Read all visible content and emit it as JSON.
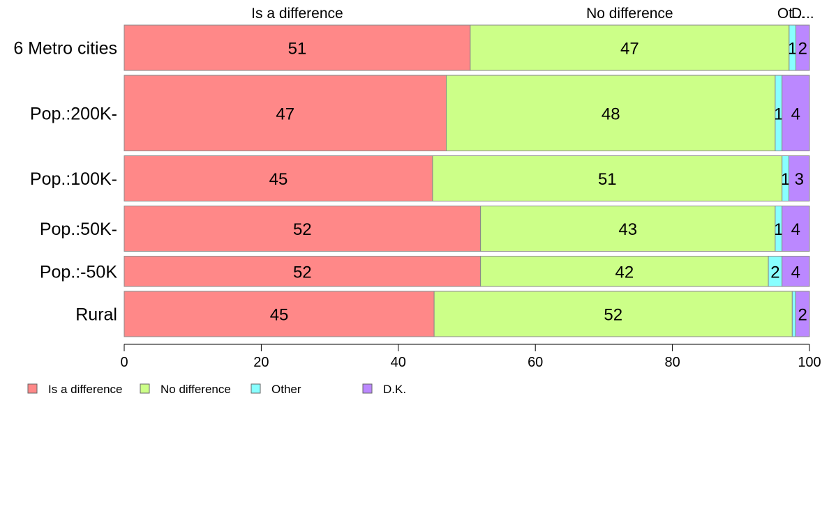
{
  "chart_data": {
    "type": "bar",
    "orientation": "horizontal",
    "stacked": true,
    "categories": [
      "6 Metro cities",
      "Pop.:200K-",
      "Pop.:100K-",
      "Pop.:50K-",
      "Pop.:-50K",
      "Rural"
    ],
    "row_weights": [
      3,
      5,
      3,
      3,
      2,
      3
    ],
    "series": [
      {
        "name": "Is a difference",
        "color": "#FF8888",
        "values": [
          51,
          47,
          45,
          52,
          52,
          45
        ]
      },
      {
        "name": "No difference",
        "color": "#CCFF88",
        "values": [
          47,
          48,
          51,
          43,
          42,
          52
        ]
      },
      {
        "name": "Other",
        "color": "#88FFFF",
        "values": [
          1,
          1,
          1,
          1,
          2,
          0.5
        ]
      },
      {
        "name": "D.K.",
        "color": "#BB88FF",
        "values": [
          2,
          4,
          3,
          4,
          4,
          2
        ]
      }
    ],
    "data_labels": [
      [
        "51",
        "47",
        "1",
        "2"
      ],
      [
        "47",
        "48",
        "1",
        "4"
      ],
      [
        "45",
        "51",
        "1",
        "3"
      ],
      [
        "52",
        "43",
        "1",
        "4"
      ],
      [
        "52",
        "42",
        "2",
        "4"
      ],
      [
        "45",
        "52",
        "",
        "2"
      ]
    ],
    "top_labels": [
      "Is a difference",
      "No difference",
      "Ot...",
      "D..."
    ],
    "xlim": [
      0,
      100
    ],
    "x_ticks": [
      "0",
      "20",
      "40",
      "60",
      "80",
      "100"
    ],
    "legend": {
      "placement": "bottom-left",
      "entries": [
        "Is a difference",
        "No difference",
        "Other",
        "D.K."
      ]
    },
    "grid": false
  }
}
